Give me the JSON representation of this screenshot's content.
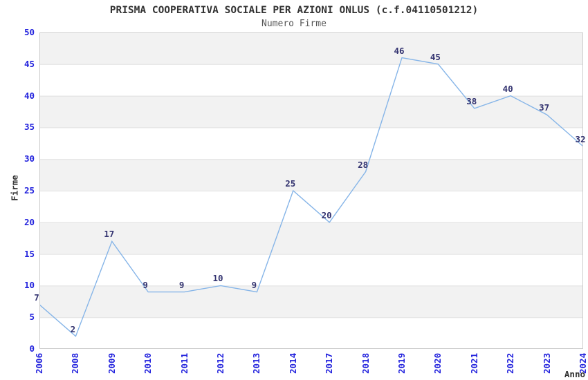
{
  "title": "PRISMA COOPERATIVA SOCIALE PER AZIONI ONLUS (c.f.04110501212)",
  "subtitle": "Numero Firme",
  "chart_data": {
    "type": "line",
    "title": "PRISMA COOPERATIVA SOCIALE PER AZIONI ONLUS (c.f.04110501212)",
    "subtitle": "Numero Firme",
    "categories": [
      "2006",
      "2008",
      "2009",
      "2010",
      "2011",
      "2012",
      "2013",
      "2014",
      "2017",
      "2018",
      "2019",
      "2020",
      "2021",
      "2022",
      "2023",
      "2024"
    ],
    "values": [
      7,
      2,
      17,
      9,
      9,
      10,
      9,
      25,
      20,
      28,
      46,
      45,
      38,
      40,
      37,
      32
    ],
    "xlabel": "Anno",
    "ylabel": "Firme",
    "ylim": [
      0,
      50
    ],
    "ytick_step": 5,
    "yticks": [
      0,
      5,
      10,
      15,
      20,
      25,
      30,
      35,
      40,
      45,
      50
    ],
    "data_labels_visible": true,
    "legend": "none",
    "grid": "horizontal-bands",
    "colors": {
      "line": "#86b5e8",
      "tick_label": "#2222dd",
      "data_label": "#333370",
      "band_fill": "#f2f2f2",
      "gridline": "#e0e0e0",
      "plot_border": "#cccccc",
      "title_text": "#333333",
      "subtitle_text": "#555555",
      "axis_title_text": "#333333",
      "background": "#ffffff"
    }
  }
}
